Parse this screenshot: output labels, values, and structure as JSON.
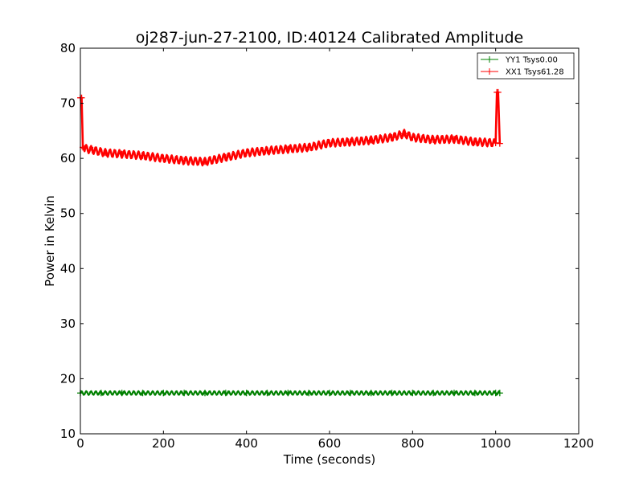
{
  "chart_data": {
    "type": "line",
    "title": "oj287-jun-27-2100, ID:40124 Calibrated Amplitude",
    "xlabel": "Time (seconds)",
    "ylabel": "Power in Kelvin",
    "xlim": [
      0,
      1200
    ],
    "ylim": [
      10,
      80
    ],
    "xticks": [
      "0",
      "200",
      "400",
      "600",
      "800",
      "1000",
      "1200"
    ],
    "yticks": [
      "10",
      "20",
      "30",
      "40",
      "50",
      "60",
      "70",
      "80"
    ],
    "grid": false,
    "legend_position": "top-right",
    "series": [
      {
        "name": "YY1 Tsys0.00",
        "color": "#008000",
        "marker": "plus",
        "x": [
          0,
          50,
          100,
          150,
          200,
          250,
          300,
          350,
          400,
          450,
          500,
          550,
          600,
          650,
          700,
          750,
          800,
          850,
          900,
          950,
          1000,
          1010
        ],
        "y": [
          17.4,
          17.4,
          17.4,
          17.4,
          17.4,
          17.4,
          17.4,
          17.4,
          17.4,
          17.4,
          17.4,
          17.4,
          17.4,
          17.4,
          17.4,
          17.4,
          17.4,
          17.4,
          17.4,
          17.4,
          17.4,
          17.4
        ]
      },
      {
        "name": "XX1 Tsys61.28",
        "color": "#ff0000",
        "marker": "plus",
        "x": [
          0,
          3,
          6,
          10,
          30,
          60,
          100,
          150,
          200,
          250,
          300,
          350,
          400,
          450,
          500,
          550,
          600,
          650,
          700,
          750,
          780,
          800,
          850,
          900,
          950,
          1000,
          1003,
          1006,
          1010
        ],
        "y": [
          71,
          71,
          62,
          61.8,
          61.5,
          61,
          60.8,
          60.5,
          60,
          59.6,
          59.4,
          60.2,
          61,
          61.4,
          61.7,
          62,
          62.8,
          63,
          63.3,
          63.8,
          64.5,
          63.8,
          63.4,
          63.5,
          63,
          62.8,
          72,
          72,
          62.7
        ]
      }
    ]
  }
}
